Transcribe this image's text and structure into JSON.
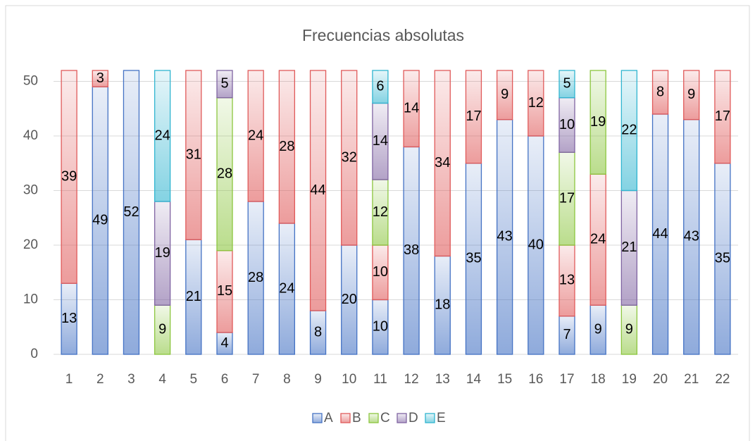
{
  "chart_data": {
    "type": "stacked_bar",
    "title": "Frecuencias absolutas",
    "categories": [
      "1",
      "2",
      "3",
      "4",
      "5",
      "6",
      "7",
      "8",
      "9",
      "10",
      "11",
      "12",
      "13",
      "14",
      "15",
      "16",
      "17",
      "18",
      "19",
      "20",
      "21",
      "22"
    ],
    "series": [
      {
        "name": "A",
        "color": "#4472c4",
        "values": [
          13,
          49,
          52,
          null,
          21,
          4,
          28,
          24,
          8,
          20,
          10,
          38,
          18,
          35,
          43,
          40,
          7,
          9,
          null,
          44,
          43,
          35
        ]
      },
      {
        "name": "B",
        "color": "#e05a5a",
        "values": [
          39,
          3,
          null,
          null,
          31,
          15,
          24,
          28,
          44,
          32,
          10,
          14,
          34,
          17,
          9,
          12,
          13,
          24,
          null,
          8,
          9,
          17
        ]
      },
      {
        "name": "C",
        "color": "#8cc63f",
        "values": [
          null,
          null,
          null,
          9,
          null,
          28,
          null,
          null,
          null,
          null,
          12,
          null,
          null,
          null,
          null,
          null,
          17,
          19,
          9,
          null,
          null,
          null
        ]
      },
      {
        "name": "D",
        "color": "#8064a2",
        "values": [
          null,
          null,
          null,
          19,
          null,
          5,
          null,
          null,
          null,
          null,
          14,
          null,
          null,
          null,
          null,
          null,
          10,
          null,
          21,
          null,
          null,
          null
        ]
      },
      {
        "name": "E",
        "color": "#31b5d0",
        "values": [
          null,
          null,
          null,
          24,
          null,
          null,
          null,
          null,
          null,
          null,
          6,
          null,
          null,
          null,
          null,
          null,
          5,
          null,
          22,
          null,
          null,
          null
        ]
      }
    ],
    "ylim": [
      0,
      52
    ],
    "yticks": [
      0,
      10,
      20,
      30,
      40,
      50
    ],
    "grid": true,
    "legend": "bottom"
  }
}
